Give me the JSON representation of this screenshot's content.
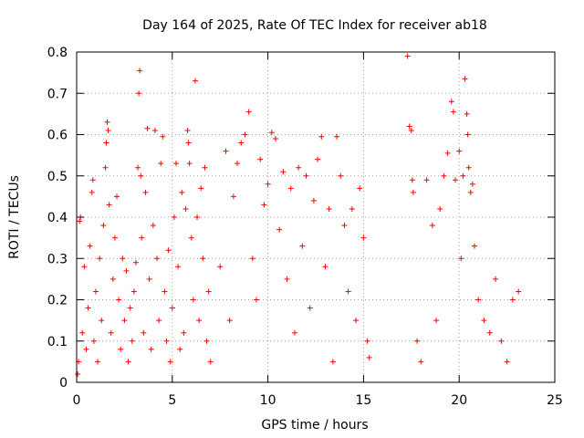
{
  "chart_data": {
    "type": "scatter",
    "title": "Day 164 of 2025, Rate Of TEC Index for receiver ab18",
    "xlabel": "GPS time / hours",
    "ylabel": "ROTI / TECUs",
    "xlim": [
      0,
      25
    ],
    "ylim": [
      0,
      0.8
    ],
    "xticks": [
      0,
      5,
      10,
      15,
      20,
      25
    ],
    "yticks": [
      0,
      0.1,
      0.2,
      0.3,
      0.4,
      0.5,
      0.6,
      0.7,
      0.8
    ],
    "xtick_labels": [
      "0",
      "5",
      "10",
      "15",
      "20",
      "25"
    ],
    "ytick_labels": [
      "0",
      "0.1",
      "0.2",
      "0.3",
      "0.4",
      "0.5",
      "0.6",
      "0.7",
      "0.8"
    ],
    "grid": true,
    "marker": "+",
    "color": "#ff0000",
    "series": [
      {
        "name": "ROTI",
        "points": [
          [
            0.05,
            0.02
          ],
          [
            0.1,
            0.05
          ],
          [
            0.15,
            0.39
          ],
          [
            0.2,
            0.4
          ],
          [
            0.3,
            0.12
          ],
          [
            0.4,
            0.28
          ],
          [
            0.5,
            0.08
          ],
          [
            0.6,
            0.18
          ],
          [
            0.7,
            0.33
          ],
          [
            0.8,
            0.46
          ],
          [
            0.85,
            0.49
          ],
          [
            0.9,
            0.1
          ],
          [
            1.0,
            0.22
          ],
          [
            1.1,
            0.05
          ],
          [
            1.2,
            0.3
          ],
          [
            1.3,
            0.15
          ],
          [
            1.4,
            0.38
          ],
          [
            1.5,
            0.52
          ],
          [
            1.55,
            0.58
          ],
          [
            1.6,
            0.63
          ],
          [
            1.65,
            0.61
          ],
          [
            1.7,
            0.43
          ],
          [
            1.8,
            0.12
          ],
          [
            1.9,
            0.25
          ],
          [
            2.0,
            0.35
          ],
          [
            2.1,
            0.45
          ],
          [
            2.2,
            0.2
          ],
          [
            2.3,
            0.08
          ],
          [
            2.4,
            0.3
          ],
          [
            2.5,
            0.15
          ],
          [
            2.6,
            0.27
          ],
          [
            2.7,
            0.05
          ],
          [
            2.8,
            0.18
          ],
          [
            2.9,
            0.1
          ],
          [
            3.0,
            0.22
          ],
          [
            3.1,
            0.29
          ],
          [
            3.2,
            0.52
          ],
          [
            3.25,
            0.7
          ],
          [
            3.3,
            0.755
          ],
          [
            3.35,
            0.5
          ],
          [
            3.4,
            0.35
          ],
          [
            3.5,
            0.12
          ],
          [
            3.6,
            0.46
          ],
          [
            3.7,
            0.615
          ],
          [
            3.8,
            0.25
          ],
          [
            3.9,
            0.08
          ],
          [
            4.0,
            0.38
          ],
          [
            4.1,
            0.61
          ],
          [
            4.2,
            0.3
          ],
          [
            4.3,
            0.15
          ],
          [
            4.4,
            0.53
          ],
          [
            4.5,
            0.595
          ],
          [
            4.6,
            0.22
          ],
          [
            4.7,
            0.1
          ],
          [
            4.8,
            0.32
          ],
          [
            4.9,
            0.05
          ],
          [
            5.0,
            0.18
          ],
          [
            5.1,
            0.4
          ],
          [
            5.2,
            0.53
          ],
          [
            5.3,
            0.28
          ],
          [
            5.4,
            0.08
          ],
          [
            5.5,
            0.46
          ],
          [
            5.6,
            0.12
          ],
          [
            5.7,
            0.42
          ],
          [
            5.8,
            0.61
          ],
          [
            5.85,
            0.58
          ],
          [
            5.9,
            0.53
          ],
          [
            6.0,
            0.35
          ],
          [
            6.1,
            0.2
          ],
          [
            6.2,
            0.73
          ],
          [
            6.3,
            0.4
          ],
          [
            6.4,
            0.15
          ],
          [
            6.5,
            0.47
          ],
          [
            6.6,
            0.3
          ],
          [
            6.7,
            0.52
          ],
          [
            6.8,
            0.1
          ],
          [
            6.9,
            0.22
          ],
          [
            7.0,
            0.05
          ],
          [
            7.5,
            0.28
          ],
          [
            7.8,
            0.56
          ],
          [
            8.0,
            0.15
          ],
          [
            8.2,
            0.45
          ],
          [
            8.4,
            0.53
          ],
          [
            8.6,
            0.58
          ],
          [
            8.8,
            0.6
          ],
          [
            9.0,
            0.655
          ],
          [
            9.2,
            0.3
          ],
          [
            9.4,
            0.2
          ],
          [
            9.6,
            0.54
          ],
          [
            9.8,
            0.43
          ],
          [
            10.0,
            0.48
          ],
          [
            10.2,
            0.605
          ],
          [
            10.4,
            0.59
          ],
          [
            10.6,
            0.37
          ],
          [
            10.8,
            0.51
          ],
          [
            11.0,
            0.25
          ],
          [
            11.2,
            0.47
          ],
          [
            11.4,
            0.12
          ],
          [
            11.6,
            0.52
          ],
          [
            11.8,
            0.33
          ],
          [
            12.0,
            0.5
          ],
          [
            12.2,
            0.18
          ],
          [
            12.4,
            0.44
          ],
          [
            12.6,
            0.54
          ],
          [
            12.8,
            0.595
          ],
          [
            13.0,
            0.28
          ],
          [
            13.2,
            0.42
          ],
          [
            13.4,
            0.05
          ],
          [
            13.6,
            0.595
          ],
          [
            13.8,
            0.5
          ],
          [
            14.0,
            0.38
          ],
          [
            14.2,
            0.22
          ],
          [
            14.4,
            0.42
          ],
          [
            14.6,
            0.15
          ],
          [
            14.8,
            0.47
          ],
          [
            15.0,
            0.35
          ],
          [
            15.2,
            0.1
          ],
          [
            15.3,
            0.06
          ],
          [
            17.3,
            0.79
          ],
          [
            17.4,
            0.62
          ],
          [
            17.5,
            0.61
          ],
          [
            17.55,
            0.49
          ],
          [
            17.6,
            0.46
          ],
          [
            17.8,
            0.1
          ],
          [
            18.0,
            0.05
          ],
          [
            18.3,
            0.49
          ],
          [
            18.6,
            0.38
          ],
          [
            18.8,
            0.15
          ],
          [
            19.0,
            0.42
          ],
          [
            19.2,
            0.5
          ],
          [
            19.4,
            0.555
          ],
          [
            19.6,
            0.68
          ],
          [
            19.7,
            0.655
          ],
          [
            19.8,
            0.49
          ],
          [
            20.0,
            0.56
          ],
          [
            20.1,
            0.3
          ],
          [
            20.2,
            0.5
          ],
          [
            20.3,
            0.735
          ],
          [
            20.4,
            0.65
          ],
          [
            20.45,
            0.6
          ],
          [
            20.5,
            0.52
          ],
          [
            20.6,
            0.46
          ],
          [
            20.7,
            0.48
          ],
          [
            20.8,
            0.33
          ],
          [
            21.0,
            0.2
          ],
          [
            21.3,
            0.15
          ],
          [
            21.6,
            0.12
          ],
          [
            21.9,
            0.25
          ],
          [
            22.2,
            0.1
          ],
          [
            22.5,
            0.05
          ],
          [
            22.8,
            0.2
          ],
          [
            23.1,
            0.22
          ]
        ]
      }
    ]
  }
}
